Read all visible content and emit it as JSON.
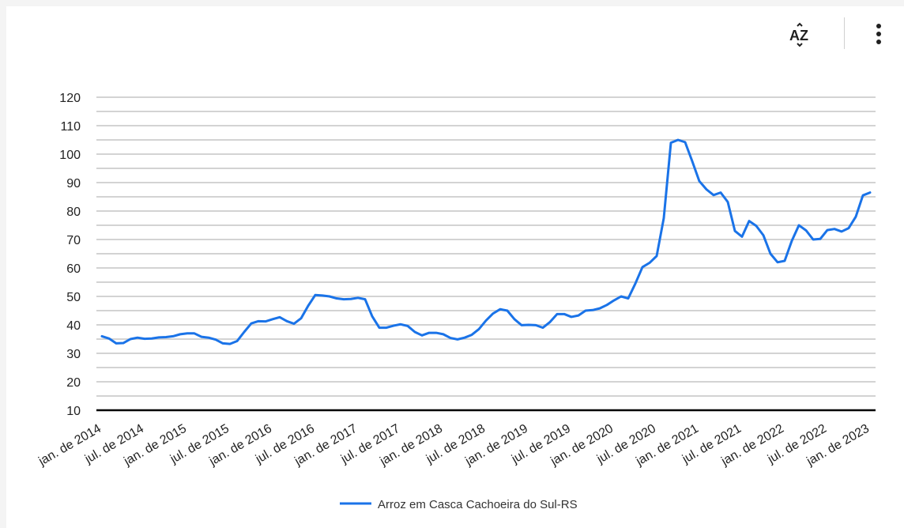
{
  "toolbar": {
    "sort_icon": "sort-az-icon",
    "more_icon": "more-vert-icon"
  },
  "chart_data": {
    "type": "line",
    "title": "",
    "xlabel": "",
    "ylabel": "",
    "ylim": [
      10,
      120
    ],
    "yticks": [
      10,
      20,
      30,
      40,
      50,
      60,
      70,
      80,
      90,
      100,
      110,
      120
    ],
    "grid": true,
    "legend_position": "bottom",
    "x_tick_labels": [
      "jan. de 2014",
      "jul. de 2014",
      "jan. de 2015",
      "jul. de 2015",
      "jan. de 2016",
      "jul. de 2016",
      "jan. de 2017",
      "jul. de 2017",
      "jan. de 2018",
      "jul. de 2018",
      "jan. de 2019",
      "jul. de 2019",
      "jan. de 2020",
      "jul. de 2020",
      "jan. de 2021",
      "jul. de 2021",
      "jan. de 2022",
      "jul. de 2022",
      "jan. de 2023"
    ],
    "x_start": "2014-01",
    "series": [
      {
        "name": "Arroz em Casca Cachoeira do Sul-RS",
        "color": "#1a73e8",
        "values": [
          36,
          35.2,
          33.5,
          33.6,
          35,
          35.5,
          35.1,
          35.2,
          35.6,
          35.7,
          36,
          36.7,
          37,
          37,
          35.8,
          35.5,
          34.8,
          33.5,
          33.3,
          34.3,
          37.5,
          40.5,
          41.3,
          41.2,
          42,
          42.7,
          41.3,
          40.4,
          42.3,
          46.7,
          50.5,
          50.3,
          50,
          49.3,
          49,
          49.1,
          49.5,
          49,
          43,
          39,
          39,
          39.7,
          40.2,
          39.6,
          37.5,
          36.3,
          37.2,
          37.2,
          36.7,
          35.4,
          34.9,
          35.5,
          36.5,
          38.5,
          41.5,
          44,
          45.5,
          45,
          42,
          39.9,
          40,
          39.9,
          39,
          41,
          43.8,
          43.8,
          42.8,
          43.3,
          45,
          45.2,
          45.8,
          47,
          48.6,
          50,
          49.3,
          54.5,
          60.3,
          61.8,
          64.2,
          77.5,
          104,
          105,
          104.2,
          97.5,
          90.5,
          87.6,
          85.6,
          86.5,
          83.2,
          73,
          71,
          76.5,
          74.8,
          71.5,
          65,
          62,
          62.5,
          69.5,
          75,
          73.2,
          70,
          70.2,
          73.3,
          73.7,
          72.8,
          74,
          78,
          85.5,
          86.5
        ]
      }
    ]
  }
}
